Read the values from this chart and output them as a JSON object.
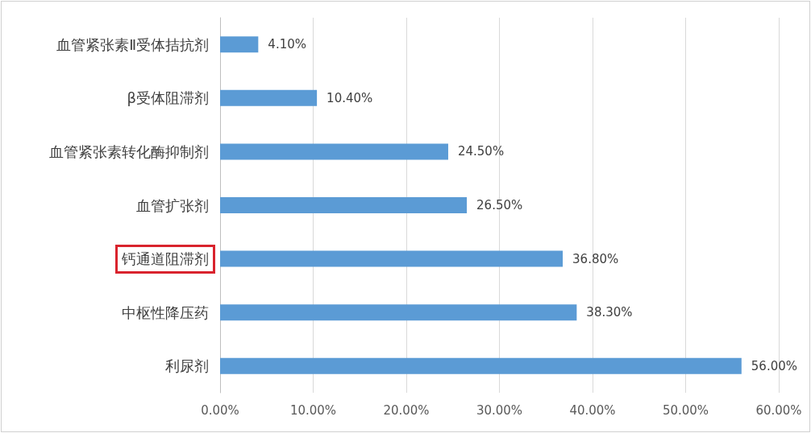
{
  "chart_data": {
    "type": "bar",
    "orientation": "horizontal",
    "categories": [
      "血管紧张素Ⅱ受体拮抗剂",
      "β受体阻滞剂",
      "血管紧张素转化酶抑制剂",
      "血管扩张剂",
      "钙通道阻滞剂",
      "中枢性降压药",
      "利尿剂"
    ],
    "series": [
      {
        "color": "#5b9bd5",
        "values": [
          4.1,
          10.4,
          24.5,
          26.5,
          36.8,
          38.3,
          56.0
        ],
        "value_labels": [
          "4.10%",
          "10.40%",
          "24.50%",
          "26.50%",
          "36.80%",
          "38.30%",
          "56.00%"
        ]
      }
    ],
    "xlim": [
      0,
      60
    ],
    "xticks": [
      {
        "value": 0,
        "label": "0.00%"
      },
      {
        "value": 10,
        "label": "10.00%"
      },
      {
        "value": 20,
        "label": "20.00%"
      },
      {
        "value": 30,
        "label": "30.00%"
      },
      {
        "value": 40,
        "label": "40.00%"
      },
      {
        "value": 50,
        "label": "50.00%"
      },
      {
        "value": 60,
        "label": "60.00%"
      }
    ],
    "grid": "x"
  }
}
